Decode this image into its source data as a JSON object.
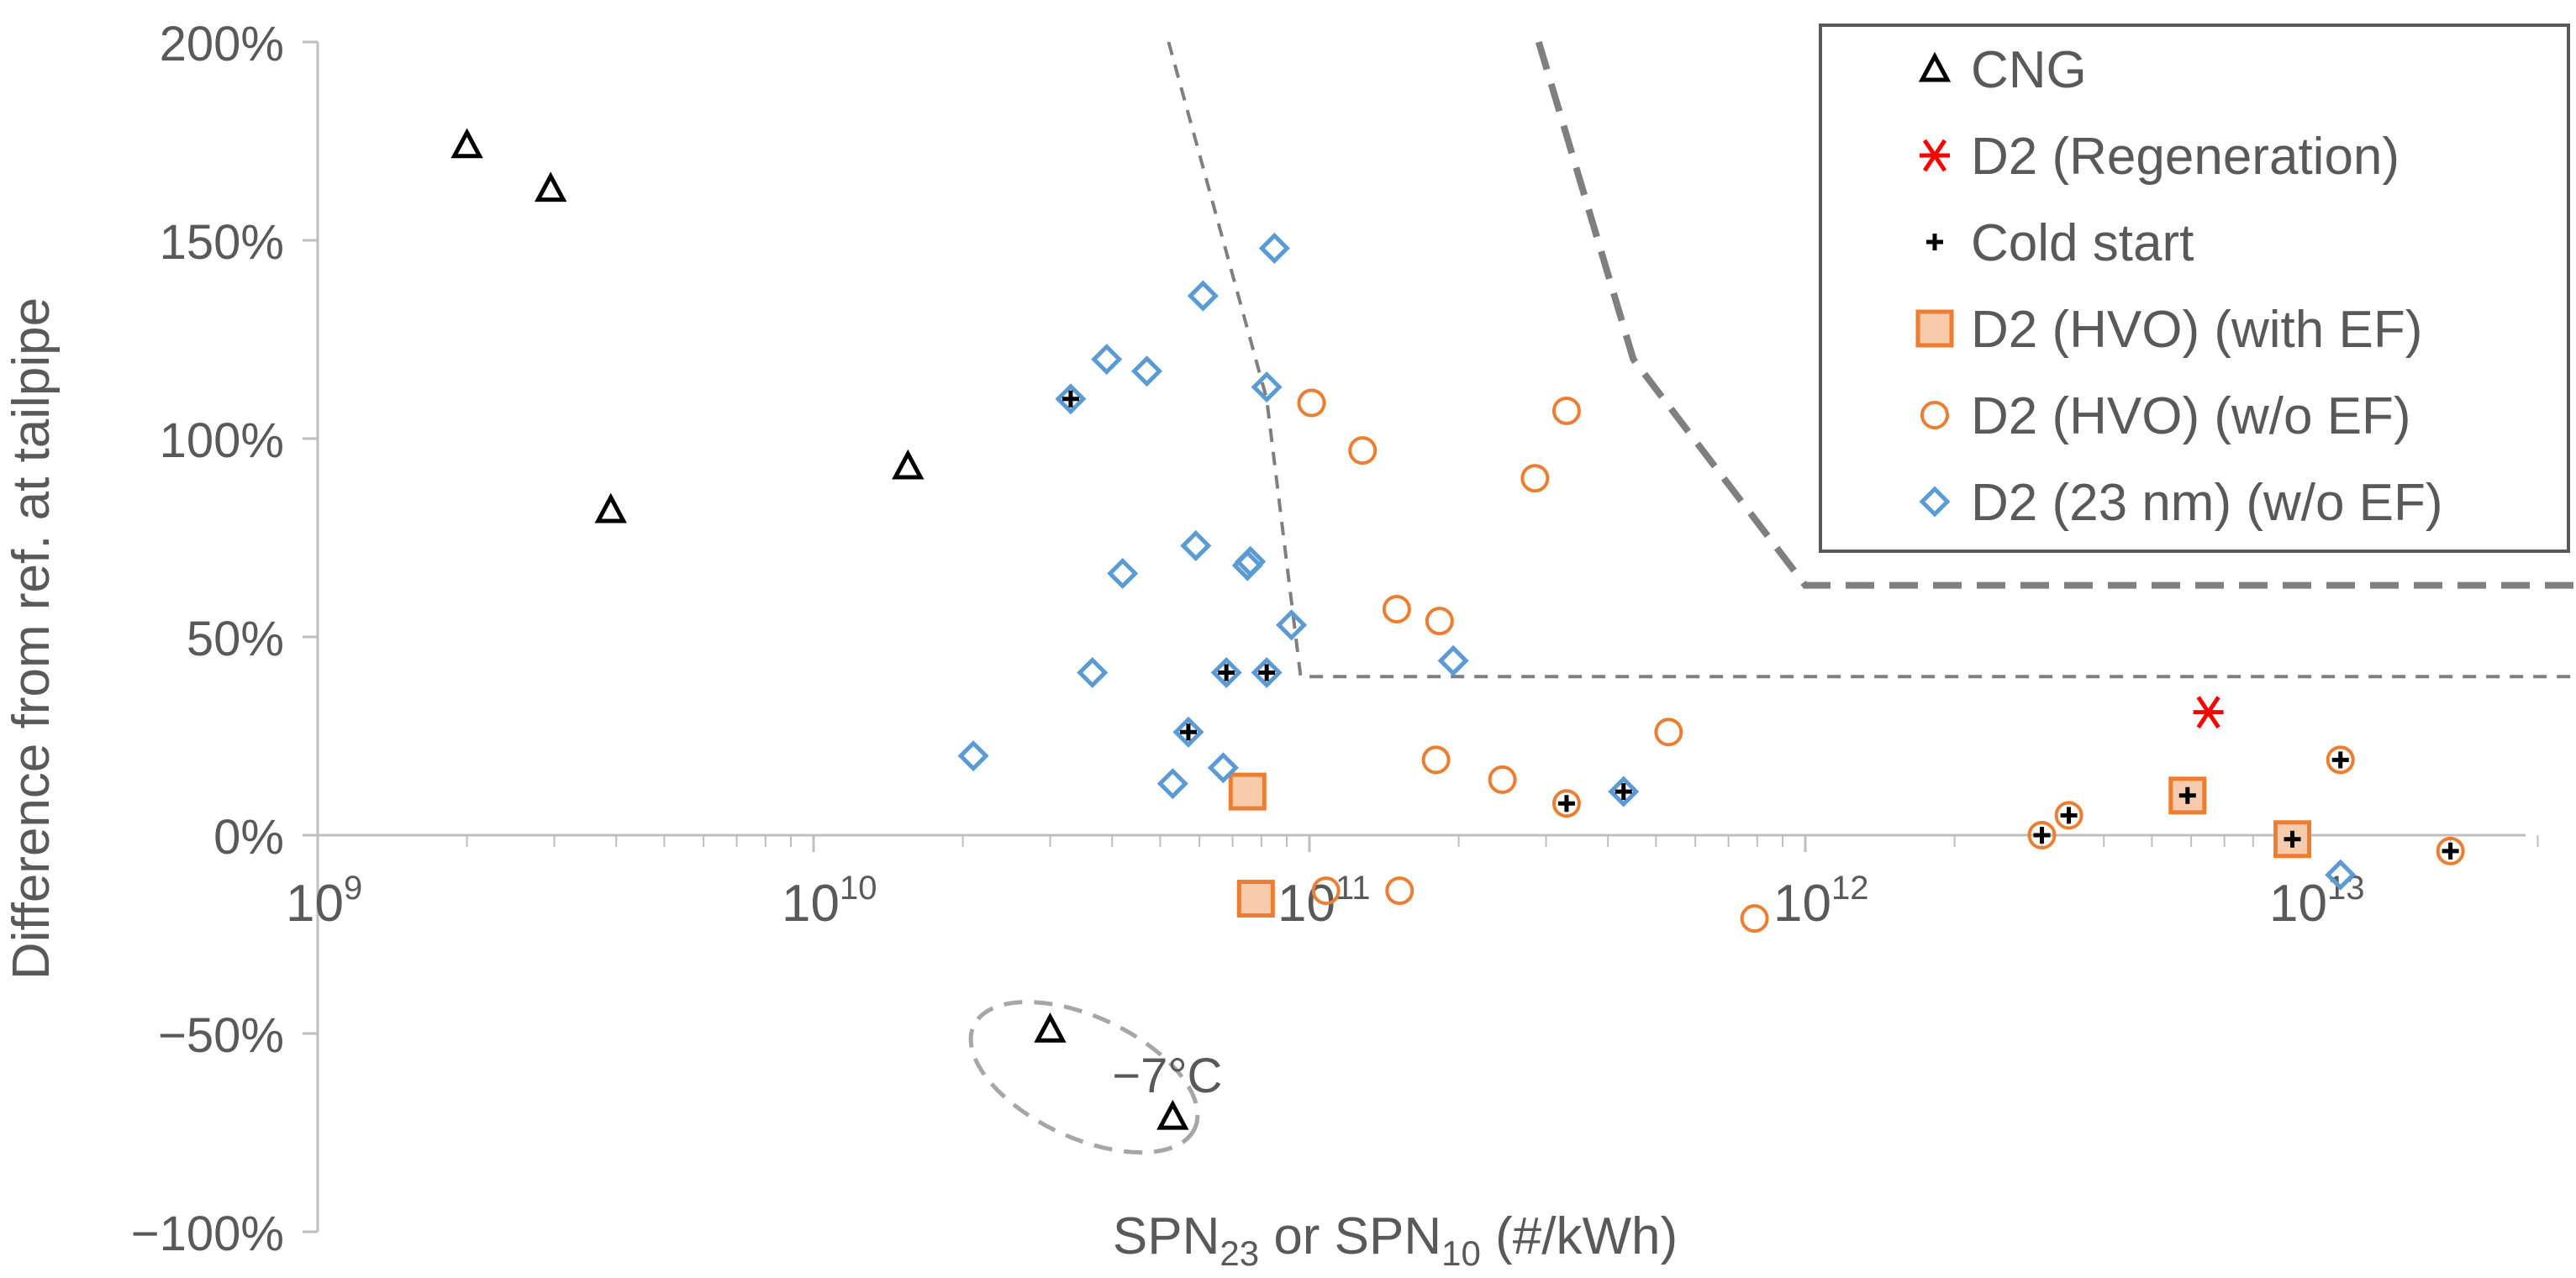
{
  "chart_data": {
    "type": "scatter",
    "title": "",
    "xlabel": "SPN23 or SPN10 (#/kWh)",
    "xlabel_parts": {
      "a": "SPN",
      "sub_a": "23",
      "mid": " or SPN",
      "sub_b": "10",
      "end": " (#/kWh)"
    },
    "ylabel": "Difference from ref. at tailpipe",
    "x_scale": "log",
    "xlim": [
      1000000000.0,
      40000000000000.0
    ],
    "ylim": [
      -100,
      200
    ],
    "y_unit": "%",
    "grid": false,
    "legend_position": "top-right",
    "x_ticks": [
      {
        "value": 1000000000.0,
        "base": "10",
        "exp": "9"
      },
      {
        "value": 10000000000.0,
        "base": "10",
        "exp": "10"
      },
      {
        "value": 100000000000.0,
        "base": "10",
        "exp": "11"
      },
      {
        "value": 1000000000000.0,
        "base": "10",
        "exp": "12"
      },
      {
        "value": 10000000000000.0,
        "base": "10",
        "exp": "13"
      }
    ],
    "y_ticks": [
      {
        "value": 200,
        "label": "200%"
      },
      {
        "value": 150,
        "label": "150%"
      },
      {
        "value": 100,
        "label": "100%"
      },
      {
        "value": 50,
        "label": "50%"
      },
      {
        "value": 0,
        "label": "0%"
      },
      {
        "value": -50,
        "label": "−50%"
      },
      {
        "value": -100,
        "label": "−100%"
      }
    ],
    "series": [
      {
        "name": "CNG",
        "marker": "triangle",
        "color": "#000000",
        "points": [
          [
            2000000000.0,
            174
          ],
          [
            2950000000.0,
            163
          ],
          [
            3900000000.0,
            82
          ],
          [
            15500000000.0,
            93
          ],
          [
            30000000000.0,
            -49
          ],
          [
            53000000000.0,
            -71
          ]
        ]
      },
      {
        "name": "D2 (Regeneration)",
        "marker": "asterisk",
        "color": "#FF0000",
        "points": [
          [
            6500000000000.0,
            31
          ]
        ]
      },
      {
        "name": "Cold start",
        "marker": "plus",
        "color": "#000000",
        "points": [
          [
            33000000000.0,
            110
          ],
          [
            57000000000.0,
            26
          ],
          [
            68000000000.0,
            41
          ],
          [
            82000000000.0,
            41
          ],
          [
            330000000000.0,
            8
          ],
          [
            430000000000.0,
            11
          ],
          [
            3000000000000.0,
            0
          ],
          [
            3400000000000.0,
            5
          ],
          [
            5900000000000.0,
            10
          ],
          [
            9600000000000.0,
            -1
          ],
          [
            12000000000000.0,
            19
          ],
          [
            20000000000000.0,
            -4
          ]
        ]
      },
      {
        "name": "D2 (HVO) (with EF)",
        "marker": "square",
        "color": "#ED7D31",
        "fill": "#F8CBAD",
        "points": [
          [
            75000000000.0,
            11
          ],
          [
            78000000000.0,
            -16
          ],
          [
            5900000000000.0,
            10
          ],
          [
            9600000000000.0,
            -1
          ]
        ]
      },
      {
        "name": "D2 (HVO) (w/o EF)",
        "marker": "circle",
        "color": "#ED7D31",
        "points": [
          [
            101000000000.0,
            109
          ],
          [
            128000000000.0,
            97
          ],
          [
            108000000000.0,
            -14
          ],
          [
            150000000000.0,
            57
          ],
          [
            152000000000.0,
            -14
          ],
          [
            180000000000.0,
            19
          ],
          [
            183000000000.0,
            54
          ],
          [
            245000000000.0,
            14
          ],
          [
            285000000000.0,
            90
          ],
          [
            330000000000.0,
            107
          ],
          [
            330000000000.0,
            8
          ],
          [
            530000000000.0,
            26
          ],
          [
            790000000000.0,
            -21
          ],
          [
            3000000000000.0,
            0
          ],
          [
            3400000000000.0,
            5
          ],
          [
            12000000000000.0,
            19
          ],
          [
            20000000000000.0,
            -4
          ]
        ]
      },
      {
        "name": "D2 (23 nm) (w/o EF)",
        "marker": "diamond",
        "color": "#5B9BD5",
        "points": [
          [
            85000000000.0,
            148
          ],
          [
            61000000000.0,
            136
          ],
          [
            39000000000.0,
            120
          ],
          [
            47000000000.0,
            117
          ],
          [
            33000000000.0,
            110
          ],
          [
            82000000000.0,
            113
          ],
          [
            59000000000.0,
            73
          ],
          [
            75000000000.0,
            68
          ],
          [
            42000000000.0,
            66
          ],
          [
            76000000000.0,
            69
          ],
          [
            92000000000.0,
            53
          ],
          [
            36500000000.0,
            41
          ],
          [
            68000000000.0,
            41
          ],
          [
            82000000000.0,
            41
          ],
          [
            195000000000.0,
            44
          ],
          [
            57000000000.0,
            26
          ],
          [
            21000000000.0,
            20
          ],
          [
            67000000000.0,
            17
          ],
          [
            53000000000.0,
            13
          ],
          [
            430000000000.0,
            11
          ],
          [
            12000000000000.0,
            -10
          ]
        ]
      }
    ],
    "reference_lines": [
      {
        "name": "lower-limit-line",
        "style": "thin-dashed",
        "points": [
          [
            52000000000.0,
            200
          ],
          [
            82000000000.0,
            110
          ],
          [
            96000000000.0,
            40
          ],
          [
            40000000000000.0,
            40
          ]
        ]
      },
      {
        "name": "upper-limit-line",
        "style": "thick-dashed",
        "points": [
          [
            290000000000.0,
            200
          ],
          [
            450000000000.0,
            120
          ],
          [
            1000000000000.0,
            63
          ],
          [
            40000000000000.0,
            63
          ]
        ]
      }
    ],
    "annotations": [
      {
        "text": "−7°C",
        "x": 40000000000.0,
        "y": -61
      }
    ]
  }
}
